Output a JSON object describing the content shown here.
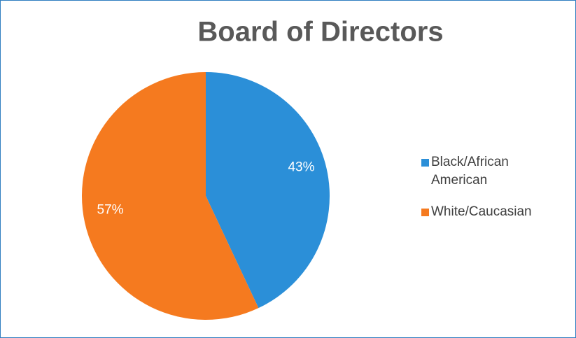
{
  "chart_data": {
    "type": "pie",
    "title": "Board of Directors",
    "categories": [
      "Black/African American",
      "White/Caucasian"
    ],
    "values": [
      43,
      57
    ],
    "value_labels": [
      "43%",
      "57%"
    ],
    "colors": [
      "#2b8fd8",
      "#f57a1f"
    ],
    "legend": "right"
  }
}
